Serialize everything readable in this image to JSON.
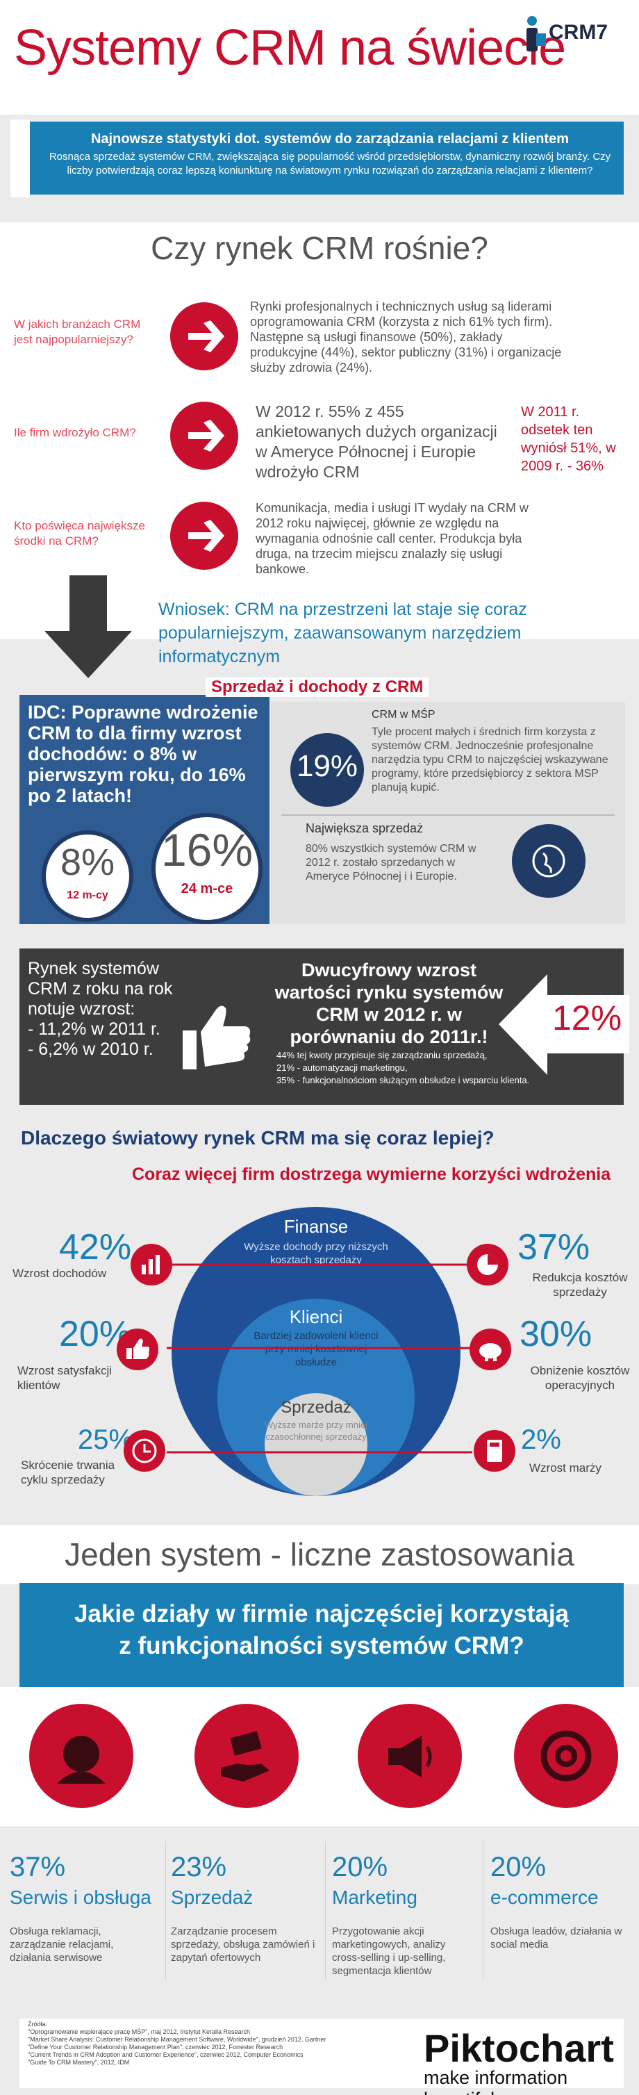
{
  "header": {
    "title": "Systemy CRM na świecie",
    "logo_text": "CRM7"
  },
  "banner": {
    "title": "Najnowsze statystyki dot. systemów do zarządzania relacjami z klientem",
    "subtitle": "Rosnąca sprzedaż systemów CRM, zwiększająca się popularność wśród przedsiębiorstw, dynamiczny rozwój branży. Czy liczby potwierdzają coraz lepszą koniunkturę na światowym rynku rozwiązań do zarządzania relacjami z klientem?"
  },
  "questions": {
    "heading": "Czy rynek CRM rośnie?",
    "items": [
      {
        "question": "W jakich branżach CRM jest najpopularniejszy?",
        "answer": "Rynki profesjonalnych i technicznych usług są liderami oprogramowania CRM (korzysta z nich 61% tych firm). Następne są usługi finansowe (50%), zakłady produkcyjne (44%), sektor publiczny (31%) i organizacje służby zdrowia (24%)."
      },
      {
        "question": "Ile firm wdrożyło CRM?",
        "answer": "W 2012 r. 55% z 455 ankietowanych dużych organizacji w Ameryce Północnej i Europie wdrożyło CRM",
        "side_note": "W 2011 r. odsetek ten wyniósł 51%, w 2009 r. - 36%"
      },
      {
        "question": "Kto poświęca największe środki na CRM?",
        "answer": "Komunikacja, media i usługi IT wydały na CRM w 2012 roku najwięcej, głównie ze względu na wymagania odnośnie call center. Produkcja była druga, na trzecim miejscu znalazły się usługi bankowe."
      }
    ],
    "conclusion": "Wniosek: CRM na przestrzeni lat staje się coraz popularniejszym, zaawansowanym narzędziem informatycznym"
  },
  "sales": {
    "title": "Sprzedaż i dochody z CRM",
    "idc_text": "IDC: Poprawne wdrożenie CRM to dla firmy wzrost dochodów: o 8% w pierwszym roku, do 16% po 2 latach!",
    "stat1_value": "8%",
    "stat1_label": "12 m-cy",
    "stat2_value": "16%",
    "stat2_label": "24 m-ce",
    "sme_title": "CRM w MŚP",
    "sme_value": "19%",
    "sme_text": "Tyle procent małych i średnich firm korzysta z systemów CRM. Jednocześnie profesjonalne narzędzia typu CRM to najczęściej wskazywane programy, które przedsiębiorcy z sektora MSP planują kupić.",
    "largest_title": "Największa sprzedaż",
    "largest_text": "80% wszystkich systemów CRM w 2012 r. zostało sprzedanych w Ameryce Północnej i i Europie."
  },
  "growth": {
    "left_text_1": "Rynek systemów CRM z roku na rok notuje wzrost:",
    "left_text_2": "- 11,2% w 2011 r.",
    "left_text_3": "- 6,2% w 2010 r.",
    "title": "Dwucyfrowy wzrost wartości rynku systemów CRM w 2012 r. w porównaniu do 2011r.!",
    "notes_1": "44% tej kwoty przypisuje się zarządzaniu sprzedażą,",
    "notes_2": "21% - automatyzacji marketingu,",
    "notes_3": "35% - funkcjonalnościom służącym obsłudze i wsparciu klienta.",
    "value": "12%"
  },
  "why": {
    "title": "Dlaczego światowy rynek CRM ma się coraz lepiej?",
    "subtitle": "Coraz więcej firm dostrzega wymierne korzyści wdrożenia",
    "rings": [
      {
        "title": "Finanse",
        "text": "Wyższe dochody przy niższych kosztach sprzedaży"
      },
      {
        "title": "Klienci",
        "text": "Bardziej zadowoleni klienci przy mniej kosztownej obsłudze"
      },
      {
        "title": "Sprzedaż",
        "text": "Wyższe marże przy mniej czasochłonnej sprzedaży"
      }
    ],
    "benefits_left": [
      {
        "value": "42%",
        "label": "Wzrost dochodów"
      },
      {
        "value": "20%",
        "label": "Wzrost satysfakcji klientów"
      },
      {
        "value": "25%",
        "label": "Skrócenie trwania cyklu sprzedaży"
      }
    ],
    "benefits_right": [
      {
        "value": "37%",
        "label": "Redukcja kosztów sprzedaży"
      },
      {
        "value": "30%",
        "label": "Obniżenie kosztów operacyjnych"
      },
      {
        "value": "2%",
        "label": "Wzrost marży"
      }
    ]
  },
  "departments": {
    "heading": "Jeden system - liczne zastosowania",
    "question_line1": "Jakie działy w firmie najczęściej korzystają",
    "question_line2": "z funkcjonalności systemów CRM?",
    "items": [
      {
        "value": "37%",
        "name": "Serwis i obsługa",
        "desc": "Obsługa reklamacji, zarządzanie relacjami, działania serwisowe"
      },
      {
        "value": "23%",
        "name": "Sprzedaż",
        "desc": "Zarządzanie procesem sprzedaży, obsługa zamówień i zapytań ofertowych"
      },
      {
        "value": "20%",
        "name": "Marketing",
        "desc": "Przygotowanie akcji marketingowych, analizy cross-selling i up-selling, segmentacja klientów"
      },
      {
        "value": "20%",
        "name": "e-commerce",
        "desc": "Obsługa leadów, działania w social media"
      }
    ]
  },
  "footer": {
    "sources_title": "Źródła:",
    "sources": [
      "\"Oprogramowanie wspierające pracę MŚP\", maj 2012, Instytut Keralla Research",
      "\"Market Share Analysis: Customer Relationship Management Software, Worldwide\", grudzień 2012, Gartner",
      "\"Define Your Customer Relationship Management Plan\", czerwiec 2012, Forrester Research",
      "\"Current Trends in CRM Adoption and Customer Experience\", czerwiec 2012, Computer Economics",
      "\"Guide To CRM Mastery\", 2012, IDM"
    ],
    "brand": "Piktochart",
    "tagline": "make information beautiful"
  }
}
